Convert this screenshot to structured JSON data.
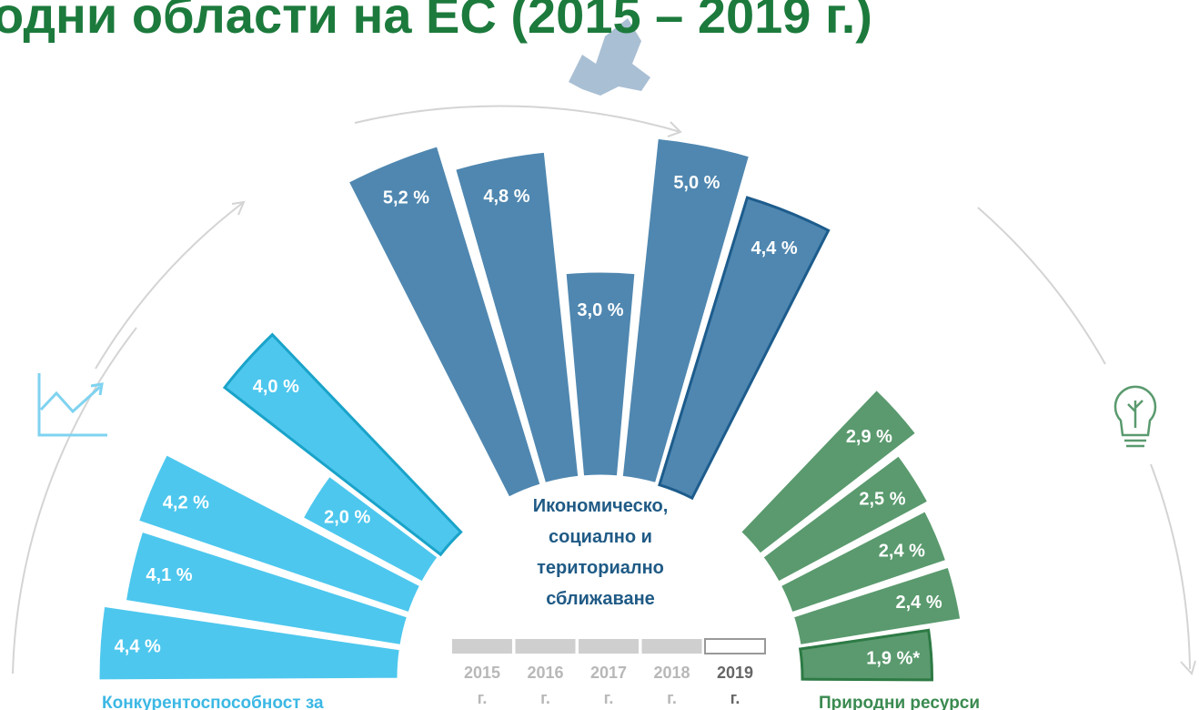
{
  "chart_data": {
    "type": "radial_bar",
    "title": "одни области на ЕС (2015 – 2019 г.)",
    "categories": [
      "2015 г.",
      "2016 г.",
      "2017 г.",
      "2018 г.",
      "2019 г."
    ],
    "groups": [
      {
        "name": "Конкурентоспособност за",
        "color": "#4dc7ee",
        "outline_color": "#1aa3c9",
        "values": [
          4.4,
          4.1,
          4.2,
          2.0,
          4.0
        ],
        "value_labels": [
          "4,4 %",
          "4,1 %",
          "4,2 %",
          "2,0 %",
          "4,0 %"
        ]
      },
      {
        "name": [
          "Икономическо,",
          "социално и",
          "териториално",
          "сближаване"
        ],
        "color": "#4f87b0",
        "outline_color": "#1d5c8c",
        "values": [
          5.2,
          4.8,
          3.0,
          5.0,
          4.4
        ],
        "value_labels": [
          "5,2 %",
          "4,8 %",
          "3,0 %",
          "5,0 %",
          "4,4 %"
        ]
      },
      {
        "name": "Природни ресурси",
        "color": "#5a9a6e",
        "outline_color": "#2d7a45",
        "values": [
          2.9,
          2.5,
          2.4,
          2.4,
          1.9
        ],
        "value_labels": [
          "2,9 %",
          "2,5 %",
          "2,4 %",
          "2,4 %",
          "1,9 %*"
        ]
      }
    ]
  }
}
